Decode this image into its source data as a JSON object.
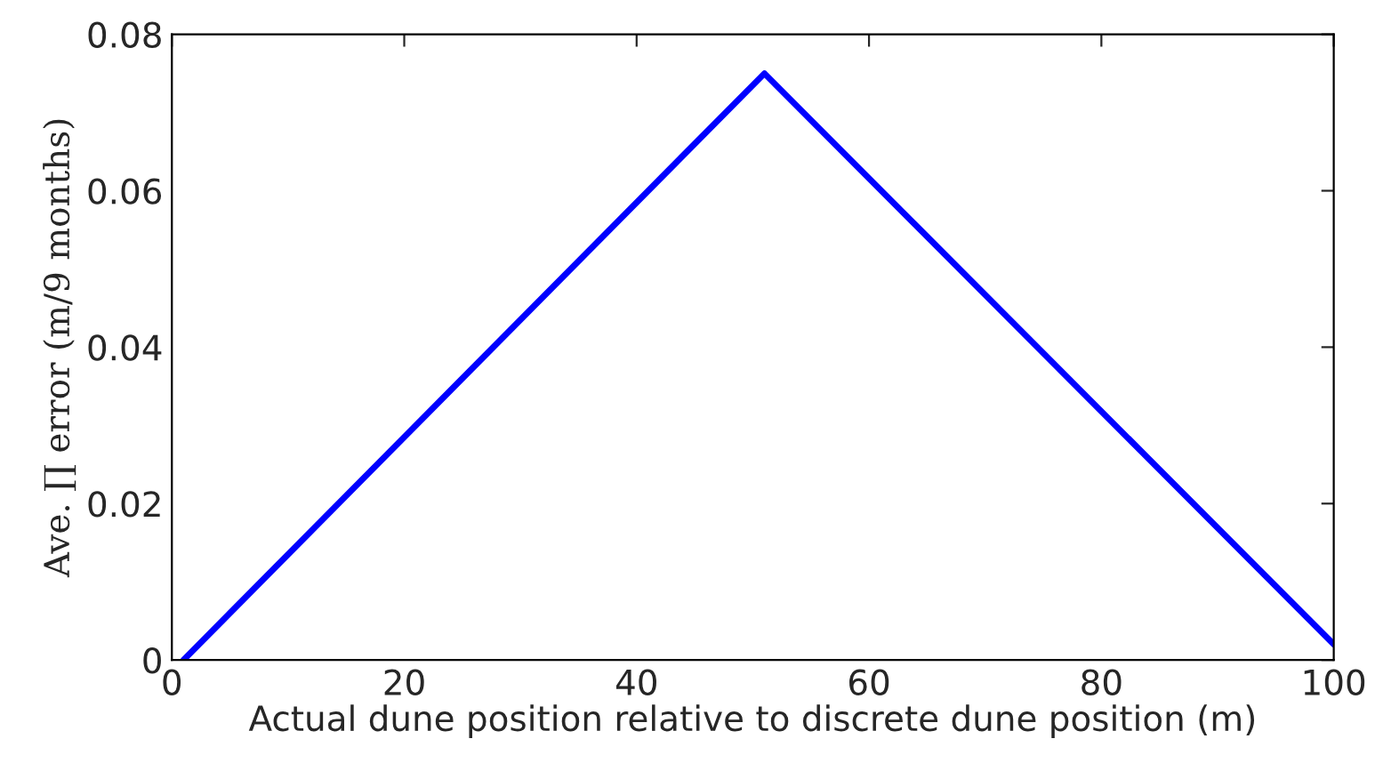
{
  "chart_data": {
    "type": "line",
    "xlabel": "Actual dune position relative to discrete dune position (m)",
    "ylabel": "Ave. ∏ error (m/9 months)",
    "series": [
      {
        "color": "#0000ff",
        "x": [
          1,
          51,
          100
        ],
        "values": [
          0,
          0.075,
          0.002
        ]
      }
    ],
    "xlim": [
      0,
      100
    ],
    "xticks": [
      0,
      20,
      40,
      60,
      80,
      100
    ],
    "ylim": [
      0,
      0.08
    ],
    "yticks": [
      0,
      0.02,
      0.04,
      0.06,
      0.08
    ],
    "grid": false,
    "legend": false,
    "marker": "none",
    "line_style": "solid"
  }
}
